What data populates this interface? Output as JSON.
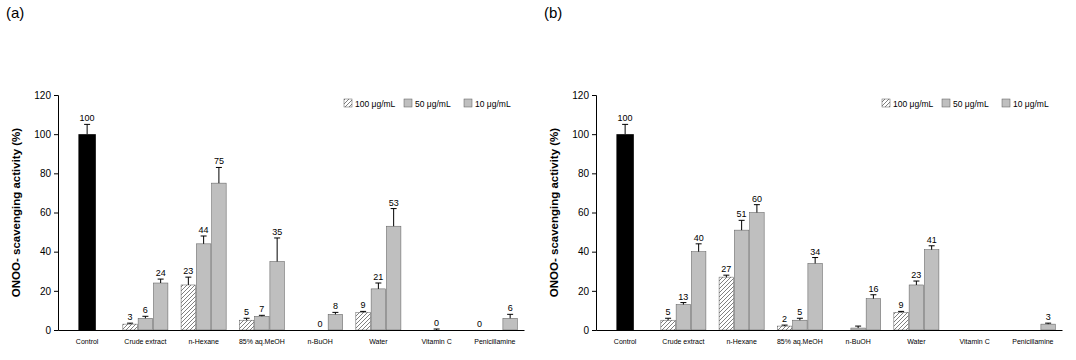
{
  "chart_data": [
    {
      "type": "bar",
      "title": "(a)",
      "y_label": "ONOO- scavenging activity (%)",
      "categories": [
        "Control",
        "Crude extract",
        "n-Hexane",
        "85% aq.MeOH",
        "n-BuOH",
        "Water",
        "Vitamin C",
        "Penicillamine"
      ],
      "control": {
        "value": 100,
        "error": 5,
        "color": "#000000"
      },
      "series": [
        {
          "name": "100 μg/mL",
          "color": "#808080",
          "values": [
            null,
            3,
            23,
            5,
            0,
            9,
            0,
            0
          ],
          "errors": [
            null,
            0.5,
            4,
            1,
            0,
            0.5,
            0,
            0
          ],
          "value_labels": [
            null,
            "3",
            "23",
            "5",
            null,
            "9",
            null,
            "0"
          ]
        },
        {
          "name": "50 μg/mL",
          "color": "#808080",
          "values": [
            null,
            6,
            44,
            7,
            0,
            21,
            0,
            0
          ],
          "errors": [
            null,
            1,
            4,
            0.5,
            0,
            3,
            0.5,
            0
          ],
          "value_labels": [
            null,
            "6",
            "44",
            "7",
            "0",
            "21",
            "0",
            null
          ]
        },
        {
          "name": "10 μg/mL",
          "color": "#bfbfbf",
          "values": [
            null,
            24,
            75,
            35,
            8,
            53,
            0,
            6
          ],
          "errors": [
            null,
            2,
            8,
            12,
            1,
            9,
            0,
            2
          ],
          "value_labels": [
            null,
            "24",
            "75",
            "35",
            "8",
            "53",
            null,
            "6"
          ]
        }
      ],
      "ylim": [
        0,
        120
      ],
      "yticks": [
        0,
        20,
        40,
        60,
        80,
        100,
        120
      ],
      "grid": false,
      "legend": "upper right",
      "data_labels": true
    },
    {
      "type": "bar",
      "title": "(b)",
      "y_label": "ONOO- scavenging activity (%)",
      "categories": [
        "Control",
        "Crude extract",
        "n-Hexane",
        "85% aq.MeOH",
        "n-BuOH",
        "Water",
        "Vitamin C",
        "Penicillamine"
      ],
      "control": {
        "value": 100,
        "error": 5,
        "color": "#000000"
      },
      "series": [
        {
          "name": "100 μg/mL",
          "color": "#808080",
          "values": [
            null,
            5,
            27,
            2,
            0,
            9,
            0,
            0
          ],
          "errors": [
            null,
            1,
            1,
            0.5,
            0,
            0.5,
            0,
            0
          ],
          "value_labels": [
            null,
            "5",
            "27",
            "2",
            null,
            "9",
            null,
            null
          ]
        },
        {
          "name": "50 μg/mL",
          "color": "#808080",
          "values": [
            null,
            13,
            51,
            5,
            1,
            23,
            0,
            0
          ],
          "errors": [
            null,
            1,
            5,
            1,
            1,
            2,
            0,
            0
          ],
          "value_labels": [
            null,
            "13",
            "51",
            "5",
            null,
            "23",
            null,
            null
          ]
        },
        {
          "name": "10 μg/mL",
          "color": "#bfbfbf",
          "values": [
            null,
            40,
            60,
            34,
            16,
            41,
            0,
            3
          ],
          "errors": [
            null,
            4,
            4,
            3,
            2,
            2,
            0,
            0.5
          ],
          "value_labels": [
            null,
            "40",
            "60",
            "34",
            "16",
            "41",
            null,
            "3"
          ]
        }
      ],
      "ylim": [
        0,
        120
      ],
      "yticks": [
        0,
        20,
        40,
        60,
        80,
        100,
        120
      ],
      "grid": false,
      "legend": "upper right",
      "data_labels": true
    }
  ]
}
